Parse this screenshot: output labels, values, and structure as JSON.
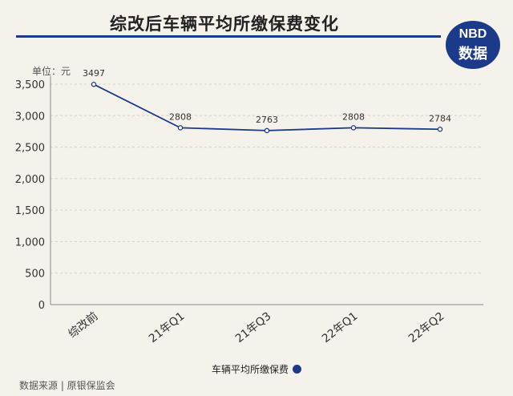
{
  "header": {
    "title": "综改后车辆平均所缴保费变化"
  },
  "logo": {
    "line1": "NBD",
    "line2": "数据"
  },
  "footer": {
    "source": "数据来源 | 原银保监会"
  },
  "colors": {
    "accent": "#1b3a8a",
    "grid": "#d7d3cb",
    "background": "#f5f2ec"
  },
  "chart_data": {
    "type": "line",
    "title": "综改后车辆平均所缴保费变化",
    "ylabel": "单位：元",
    "xlabel": "",
    "categories": [
      "综改前",
      "21年Q1",
      "21年Q3",
      "22年Q1",
      "22年Q2"
    ],
    "series": [
      {
        "name": "车辆平均所缴保费",
        "values": [
          3497,
          2808,
          2763,
          2808,
          2784
        ]
      }
    ],
    "ylim": [
      0,
      3500
    ],
    "yticks": [
      0,
      500,
      1000,
      1500,
      2000,
      2500,
      3000,
      3500
    ],
    "ytick_labels": [
      "0",
      "500",
      "1,000",
      "1,500",
      "2,000",
      "2,500",
      "3,000",
      "3,500"
    ],
    "data_labels": [
      "3497",
      "2808",
      "2763",
      "2808",
      "2784"
    ],
    "grid": true,
    "legend_position": "bottom"
  }
}
